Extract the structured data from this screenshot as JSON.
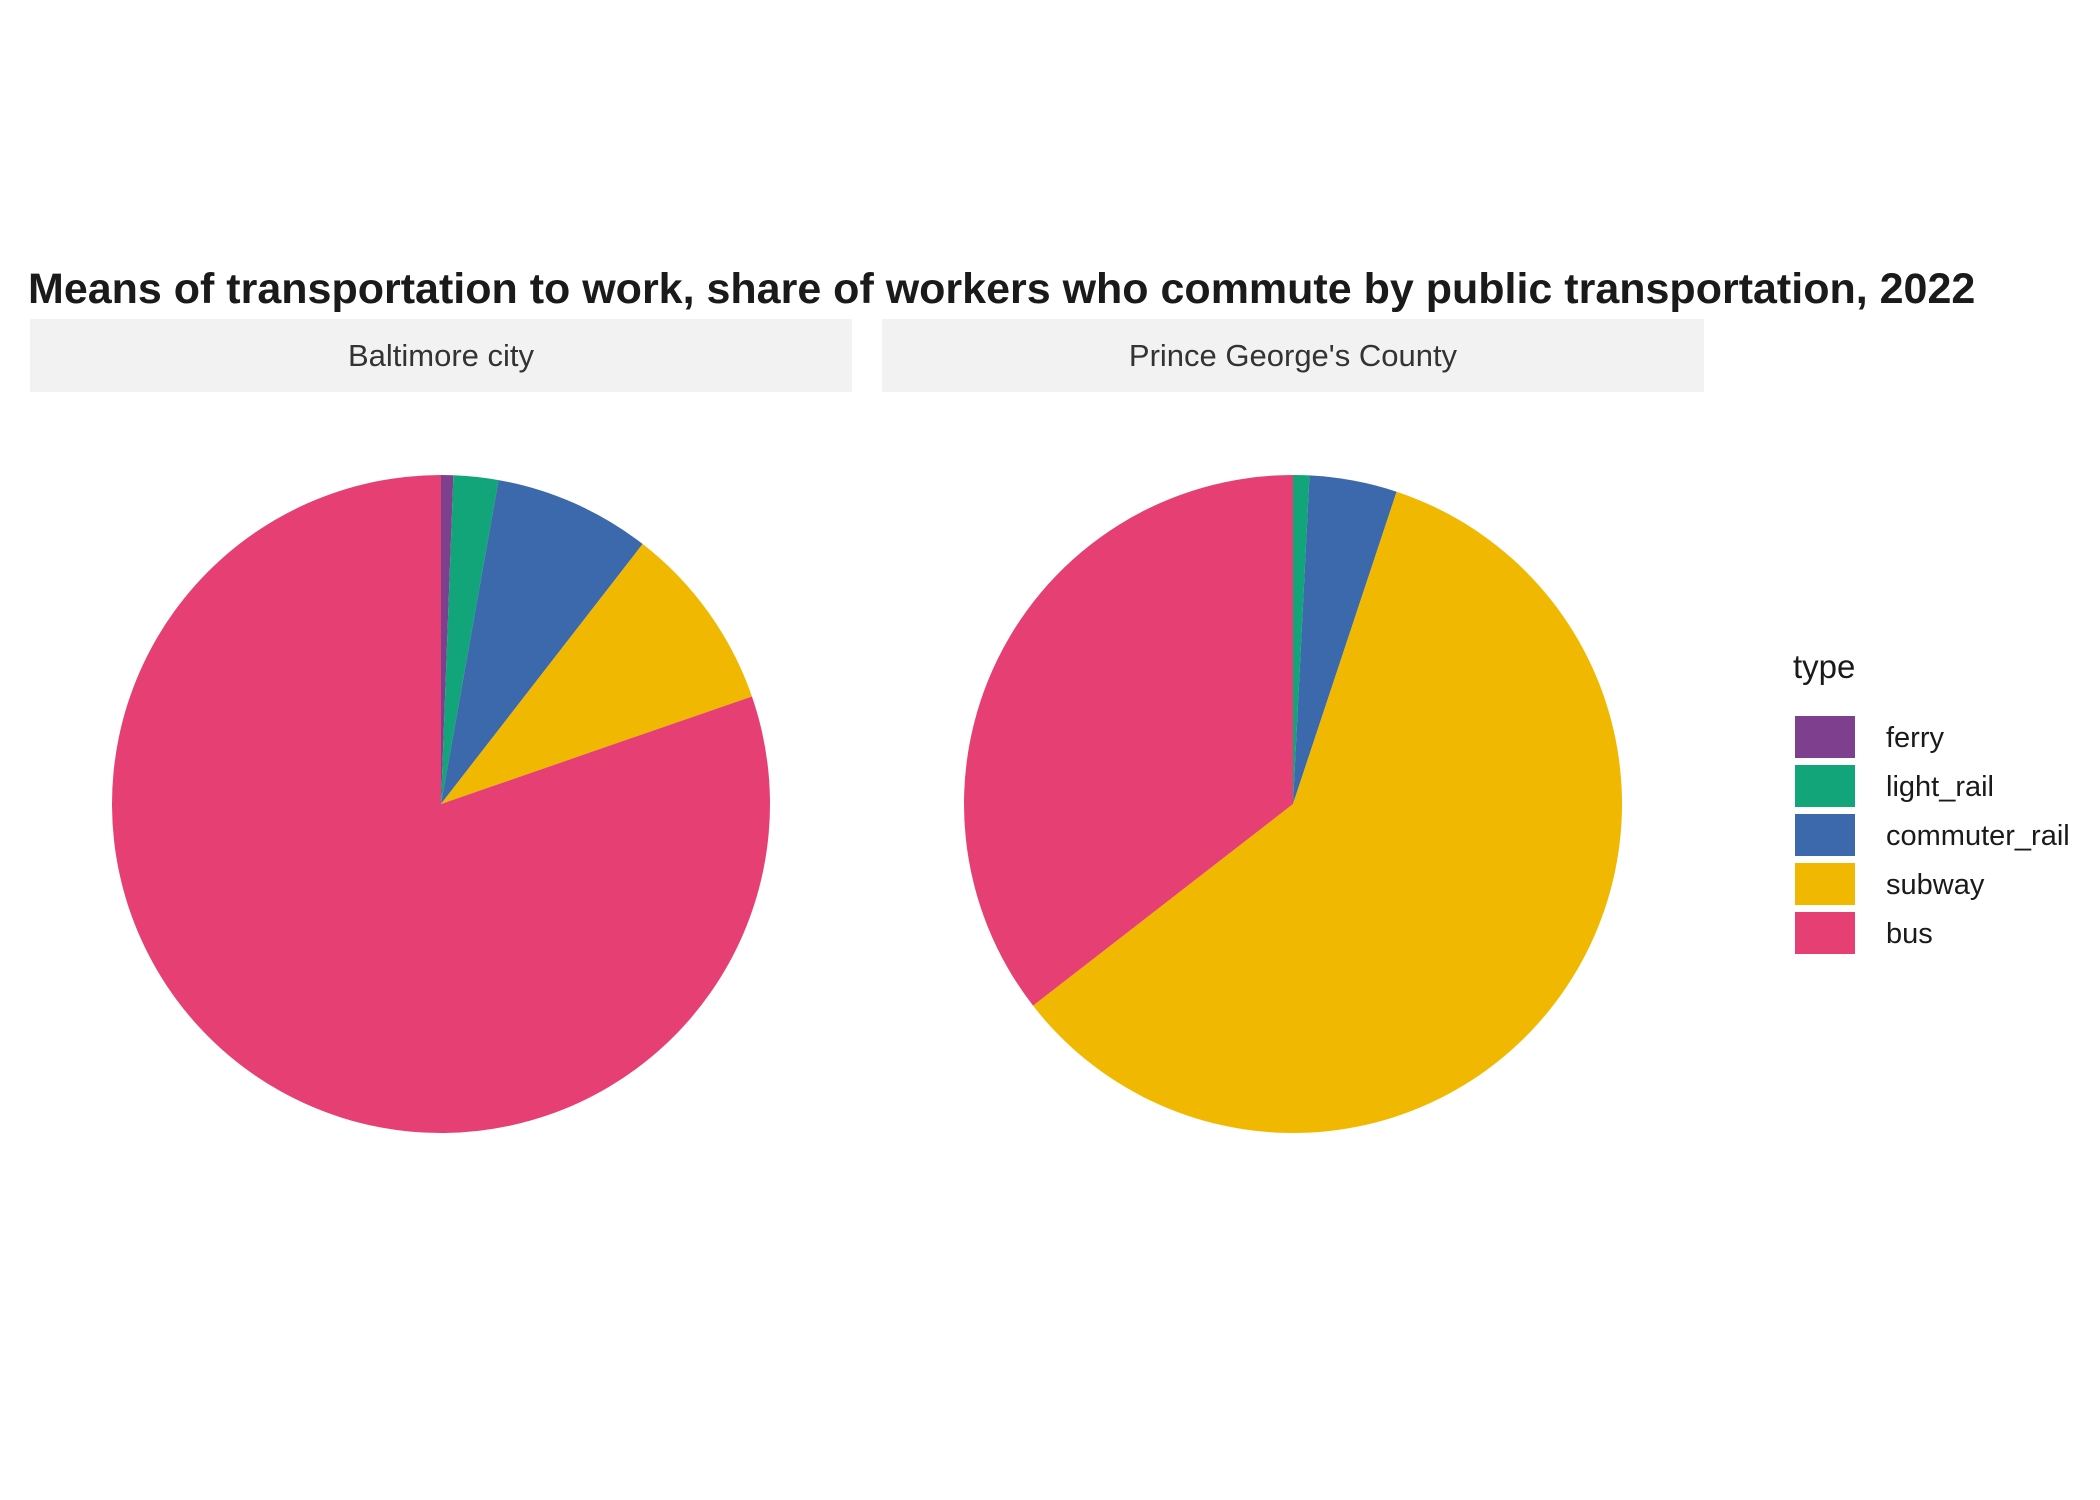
{
  "chart_data": {
    "type": "pie",
    "title": "Means of transportation to work, share of workers who commute by public transportation, 2022",
    "legend": {
      "title": "type",
      "position": "right",
      "entries": [
        "ferry",
        "light_rail",
        "commuter_rail",
        "subway",
        "bus"
      ]
    },
    "colors": {
      "ferry": "#7f3f8f",
      "light_rail": "#12a579",
      "commuter_rail": "#3b69ac",
      "subway": "#f0b800",
      "bus": "#e63f74"
    },
    "panels": [
      {
        "name": "Baltimore city",
        "slices": [
          {
            "type": "ferry",
            "value": 0.6
          },
          {
            "type": "light_rail",
            "value": 2.2
          },
          {
            "type": "commuter_rail",
            "value": 7.7
          },
          {
            "type": "subway",
            "value": 9.2
          },
          {
            "type": "bus",
            "value": 80.3
          }
        ]
      },
      {
        "name": "Prince George's County",
        "slices": [
          {
            "type": "ferry",
            "value": 0.0
          },
          {
            "type": "light_rail",
            "value": 0.8
          },
          {
            "type": "commuter_rail",
            "value": 4.3
          },
          {
            "type": "subway",
            "value": 59.4
          },
          {
            "type": "bus",
            "value": 35.5
          }
        ]
      }
    ]
  }
}
